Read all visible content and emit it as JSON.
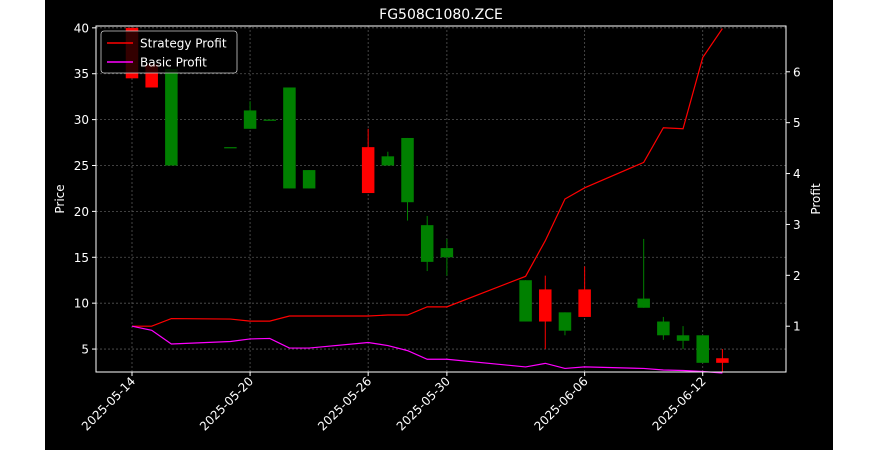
{
  "colors": {
    "background": "#000000",
    "up": "#008000",
    "down": "#ff0000",
    "strategy": "#ff0000",
    "basic": "#ff00ff",
    "grid": "#555555"
  },
  "chart_data": {
    "type": "candlestick",
    "title": "FG508C1080.ZCE",
    "ylabel_left": "Price",
    "ylabel_right": "Profit",
    "ylim_left": [
      2.5,
      40.2
    ],
    "ylim_right": [
      0.1,
      6.9
    ],
    "left_ticks": [
      5,
      10,
      15,
      20,
      25,
      30,
      35,
      40
    ],
    "right_ticks": [
      1,
      2,
      3,
      4,
      5,
      6
    ],
    "x_ticks": [
      {
        "date": "2025-05-14",
        "label": "2025-05-14"
      },
      {
        "date": "2025-05-20",
        "label": "2025-05-20"
      },
      {
        "date": "2025-05-26",
        "label": "2025-05-26"
      },
      {
        "date": "2025-05-30",
        "label": "2025-05-30"
      },
      {
        "date": "2025-06-06",
        "label": "2025-06-06"
      },
      {
        "date": "2025-06-12",
        "label": "2025-06-12"
      }
    ],
    "legend": {
      "position": "top-left",
      "entries": [
        "Strategy Profit",
        "Basic Profit"
      ]
    },
    "grid": true,
    "candles": [
      {
        "date": "2025-05-14",
        "open": 40.0,
        "close": 34.5,
        "high": 40.0,
        "low": 34.5
      },
      {
        "date": "2025-05-15",
        "open": 36.0,
        "close": 33.5,
        "high": 36.0,
        "low": 33.5
      },
      {
        "date": "2025-05-16",
        "open": 25.0,
        "close": 35.5,
        "high": 35.5,
        "low": 25.0
      },
      {
        "date": "2025-05-19",
        "open": 27.0,
        "close": 27.0,
        "high": 27.0,
        "low": 27.0
      },
      {
        "date": "2025-05-20",
        "open": 29.0,
        "close": 31.0,
        "high": 32.0,
        "low": 29.0
      },
      {
        "date": "2025-05-21",
        "open": 30.0,
        "close": 30.0,
        "high": 30.0,
        "low": 30.0
      },
      {
        "date": "2025-05-22",
        "open": 22.5,
        "close": 33.5,
        "high": 33.5,
        "low": 22.5
      },
      {
        "date": "2025-05-23",
        "open": 22.5,
        "close": 24.5,
        "high": 24.5,
        "low": 22.5
      },
      {
        "date": "2025-05-26",
        "open": 27.0,
        "close": 22.0,
        "high": 29.0,
        "low": 22.0
      },
      {
        "date": "2025-05-27",
        "open": 25.0,
        "close": 26.0,
        "high": 26.5,
        "low": 25.0
      },
      {
        "date": "2025-05-28",
        "open": 21.0,
        "close": 28.0,
        "high": 28.0,
        "low": 19.0
      },
      {
        "date": "2025-05-29",
        "open": 14.5,
        "close": 18.5,
        "high": 19.5,
        "low": 13.5
      },
      {
        "date": "2025-05-30",
        "open": 15.0,
        "close": 16.0,
        "high": 17.0,
        "low": 13.0
      },
      {
        "date": "2025-06-03",
        "open": 8.0,
        "close": 12.5,
        "high": 12.5,
        "low": 8.0
      },
      {
        "date": "2025-06-04",
        "open": 11.5,
        "close": 8.0,
        "high": 13.0,
        "low": 5.0
      },
      {
        "date": "2025-06-05",
        "open": 7.0,
        "close": 9.0,
        "high": 9.0,
        "low": 6.5
      },
      {
        "date": "2025-06-06",
        "open": 11.5,
        "close": 8.5,
        "high": 14.0,
        "low": 8.5
      },
      {
        "date": "2025-06-09",
        "open": 9.5,
        "close": 10.5,
        "high": 17.0,
        "low": 9.5
      },
      {
        "date": "2025-06-10",
        "open": 6.5,
        "close": 8.0,
        "high": 8.5,
        "low": 6.0
      },
      {
        "date": "2025-06-11",
        "open": 5.9,
        "close": 6.5,
        "high": 7.5,
        "low": 5.0
      },
      {
        "date": "2025-06-12",
        "open": 3.5,
        "close": 6.5,
        "high": 6.5,
        "low": 3.5
      },
      {
        "date": "2025-06-13",
        "open": 4.0,
        "close": 3.5,
        "high": 5.0,
        "low": 2.5
      }
    ],
    "series": [
      {
        "name": "Strategy Profit",
        "values": [
          1.0,
          1.0,
          1.15,
          1.14,
          1.1,
          1.1,
          1.2,
          1.2,
          1.2,
          1.22,
          1.22,
          1.38,
          1.38,
          1.98,
          2.68,
          3.5,
          3.72,
          4.22,
          4.9,
          4.88,
          6.28,
          6.85
        ]
      },
      {
        "name": "Basic Profit",
        "values": [
          1.0,
          0.92,
          0.65,
          0.7,
          0.75,
          0.76,
          0.57,
          0.57,
          0.68,
          0.62,
          0.52,
          0.35,
          0.35,
          0.2,
          0.27,
          0.17,
          0.2,
          0.17,
          0.14,
          0.13,
          0.11,
          0.08
        ]
      }
    ]
  }
}
